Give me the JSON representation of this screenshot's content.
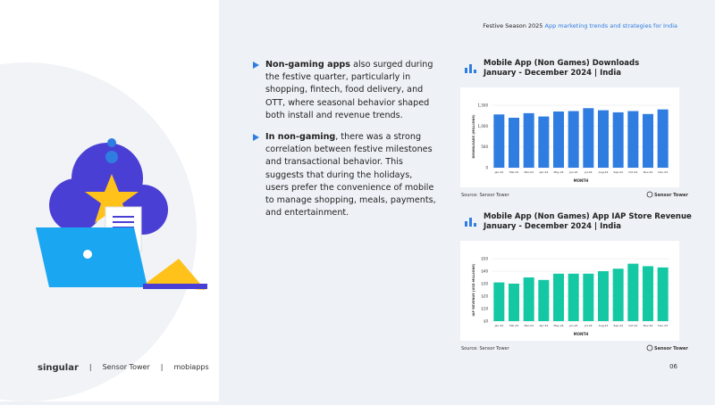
{
  "header": {
    "lead": "Festive Season 2025",
    "rest": "App marketing trends and strategies for India"
  },
  "bullets": [
    {
      "bold": "Non-gaming apps",
      "text": " also surged during the festive quarter, particularly in shopping, fintech, food delivery, and OTT, where seasonal behavior shaped both install and revenue trends."
    },
    {
      "bold": "In non-gaming",
      "text": ", there was a strong correlation between festive milestones and transactional behavior. This suggests that during the holidays, users prefer the convenience of mobile to manage shopping, meals, payments, and entertainment."
    }
  ],
  "chart_data": [
    {
      "type": "bar",
      "title": "Mobile App (Non Games) Downloads",
      "subtitle": "January - December 2024 | India",
      "y_label": "DOWNLOADS (MILLIONS)",
      "x_label": "MONTH",
      "color": "#2f7de1",
      "categories": [
        "Jan-24",
        "Feb-24",
        "Mar-24",
        "Apr-24",
        "May-24",
        "Jun-24",
        "Jul-24",
        "Aug-24",
        "Sep-24",
        "Oct-24",
        "Nov-24",
        "Dec-24"
      ],
      "values": [
        1280,
        1200,
        1310,
        1230,
        1350,
        1360,
        1430,
        1380,
        1330,
        1360,
        1290,
        1400
      ],
      "ylim": [
        0,
        1500
      ],
      "yticks": [
        0,
        500,
        {
          "value": 1000,
          "label": "1,000"
        },
        {
          "value": 1500,
          "label": "1,500"
        }
      ],
      "grid": true,
      "source": "Source: Sensor Tower",
      "source_logo": "Sensor Tower"
    },
    {
      "type": "bar",
      "title": "Mobile App (Non Games) App IAP Store Revenue",
      "subtitle": "January - December 2024 | India",
      "y_label": "IAP REVENUE (USD MILLIONS)",
      "x_label": "MONTH",
      "color": "#14c8a4",
      "categories": [
        "Jan-24",
        "Feb-24",
        "Mar-24",
        "Apr-24",
        "May-24",
        "Jun-24",
        "Jul-24",
        "Aug-24",
        "Sep-24",
        "Oct-24",
        "Nov-24",
        "Dec-24"
      ],
      "values": [
        31,
        30,
        35,
        33,
        38,
        38,
        38,
        40,
        42,
        46,
        44,
        43
      ],
      "ylim": [
        0,
        50
      ],
      "yticks": [
        {
          "value": 0,
          "label": "$0"
        },
        {
          "value": 10,
          "label": "$10"
        },
        {
          "value": 20,
          "label": "$20"
        },
        {
          "value": 30,
          "label": "$30"
        },
        {
          "value": 40,
          "label": "$40"
        },
        {
          "value": 50,
          "label": "$50"
        }
      ],
      "grid": true,
      "source": "Source: Sensor Tower",
      "source_logo": "Sensor Tower"
    }
  ],
  "footer": {
    "logos": [
      "singular",
      "Sensor Tower",
      "mobiapps"
    ],
    "page": "06"
  }
}
